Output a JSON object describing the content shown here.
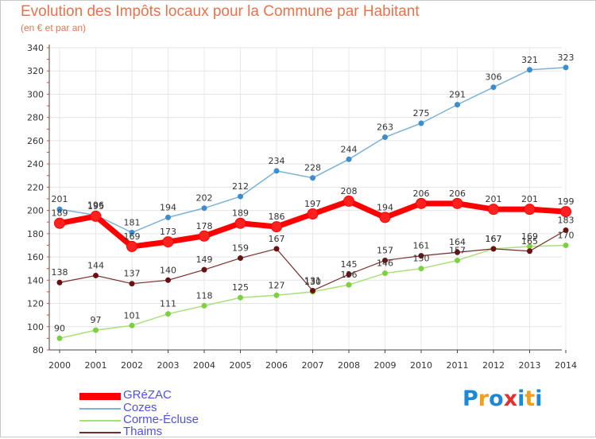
{
  "header": {
    "title": "Evolution des Impôts locaux pour la Commune par Habitant",
    "subtitle": "(en € et par an)"
  },
  "brand": {
    "text": "Proxiti",
    "letters": [
      {
        "ch": "P",
        "color": "#1e88d8"
      },
      {
        "ch": "r",
        "color": "#f0a020"
      },
      {
        "ch": "o",
        "color": "#1e88d8"
      },
      {
        "ch": "x",
        "color": "#e03030"
      },
      {
        "ch": "i",
        "color": "#1e88d8"
      },
      {
        "ch": "t",
        "color": "#f0a020"
      },
      {
        "ch": "i",
        "color": "#1e88d8"
      }
    ]
  },
  "chart_data": {
    "type": "line",
    "title": "Evolution des Impôts locaux pour la Commune par Habitant",
    "subtitle": "(en € et par an)",
    "x": [
      "2000",
      "2001",
      "2002",
      "2003",
      "2004",
      "2005",
      "2006",
      "2007",
      "2008",
      "2009",
      "2010",
      "2011",
      "2012",
      "2013",
      "2014"
    ],
    "ylim": [
      80,
      340
    ],
    "yticks": [
      80,
      100,
      120,
      140,
      160,
      180,
      200,
      220,
      240,
      260,
      280,
      300,
      320,
      340
    ],
    "grid": true,
    "legend": "bottom-left",
    "series": [
      {
        "name": "GRéZAC",
        "color": "#ff0000",
        "marker": "#ff2020",
        "width": 7,
        "values": [
          189,
          195,
          169,
          173,
          178,
          189,
          186,
          197,
          208,
          194,
          206,
          206,
          201,
          201,
          199
        ]
      },
      {
        "name": "Cozes",
        "color": "#7ab2d8",
        "marker": "#3a8ed0",
        "width": 1.5,
        "values": [
          201,
          196,
          181,
          194,
          202,
          212,
          234,
          228,
          244,
          263,
          275,
          291,
          306,
          321,
          323
        ]
      },
      {
        "name": "Corme-Écluse",
        "color": "#a8e07a",
        "marker": "#7ed040",
        "width": 1.5,
        "values": [
          90,
          97,
          101,
          111,
          118,
          125,
          127,
          130,
          136,
          146,
          150,
          157,
          167,
          169,
          170
        ]
      },
      {
        "name": "Thaims",
        "color": "#7a2a2a",
        "marker": "#6a1010",
        "width": 1.2,
        "values": [
          138,
          144,
          137,
          140,
          149,
          159,
          167,
          131,
          145,
          157,
          161,
          164,
          167,
          165,
          183
        ]
      }
    ]
  }
}
